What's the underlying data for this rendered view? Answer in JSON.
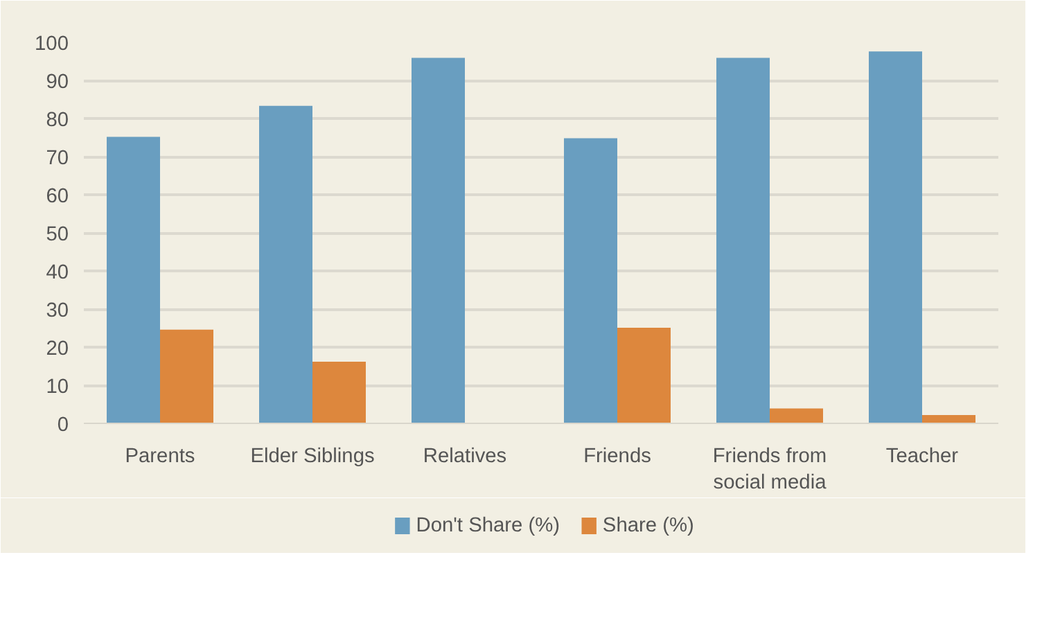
{
  "chart_data": {
    "type": "bar",
    "categories": [
      "Parents",
      "Elder Siblings",
      "Relatives",
      "Friends",
      "Friends from social media",
      "Teacher"
    ],
    "series": [
      {
        "name": "Don't Share (%)",
        "color": "#699ec0",
        "values": [
          75.2,
          83.3,
          95.9,
          74.8,
          95.9,
          97.6
        ]
      },
      {
        "name": "Share (%)",
        "color": "#dd873d",
        "values": [
          24.6,
          16.2,
          null,
          25.1,
          3.9,
          2.2
        ]
      }
    ],
    "ylim": [
      0,
      100
    ],
    "yticks": [
      0,
      10,
      20,
      30,
      40,
      50,
      60,
      70,
      80,
      90,
      100
    ],
    "grid": "y",
    "legend": "bottom"
  }
}
